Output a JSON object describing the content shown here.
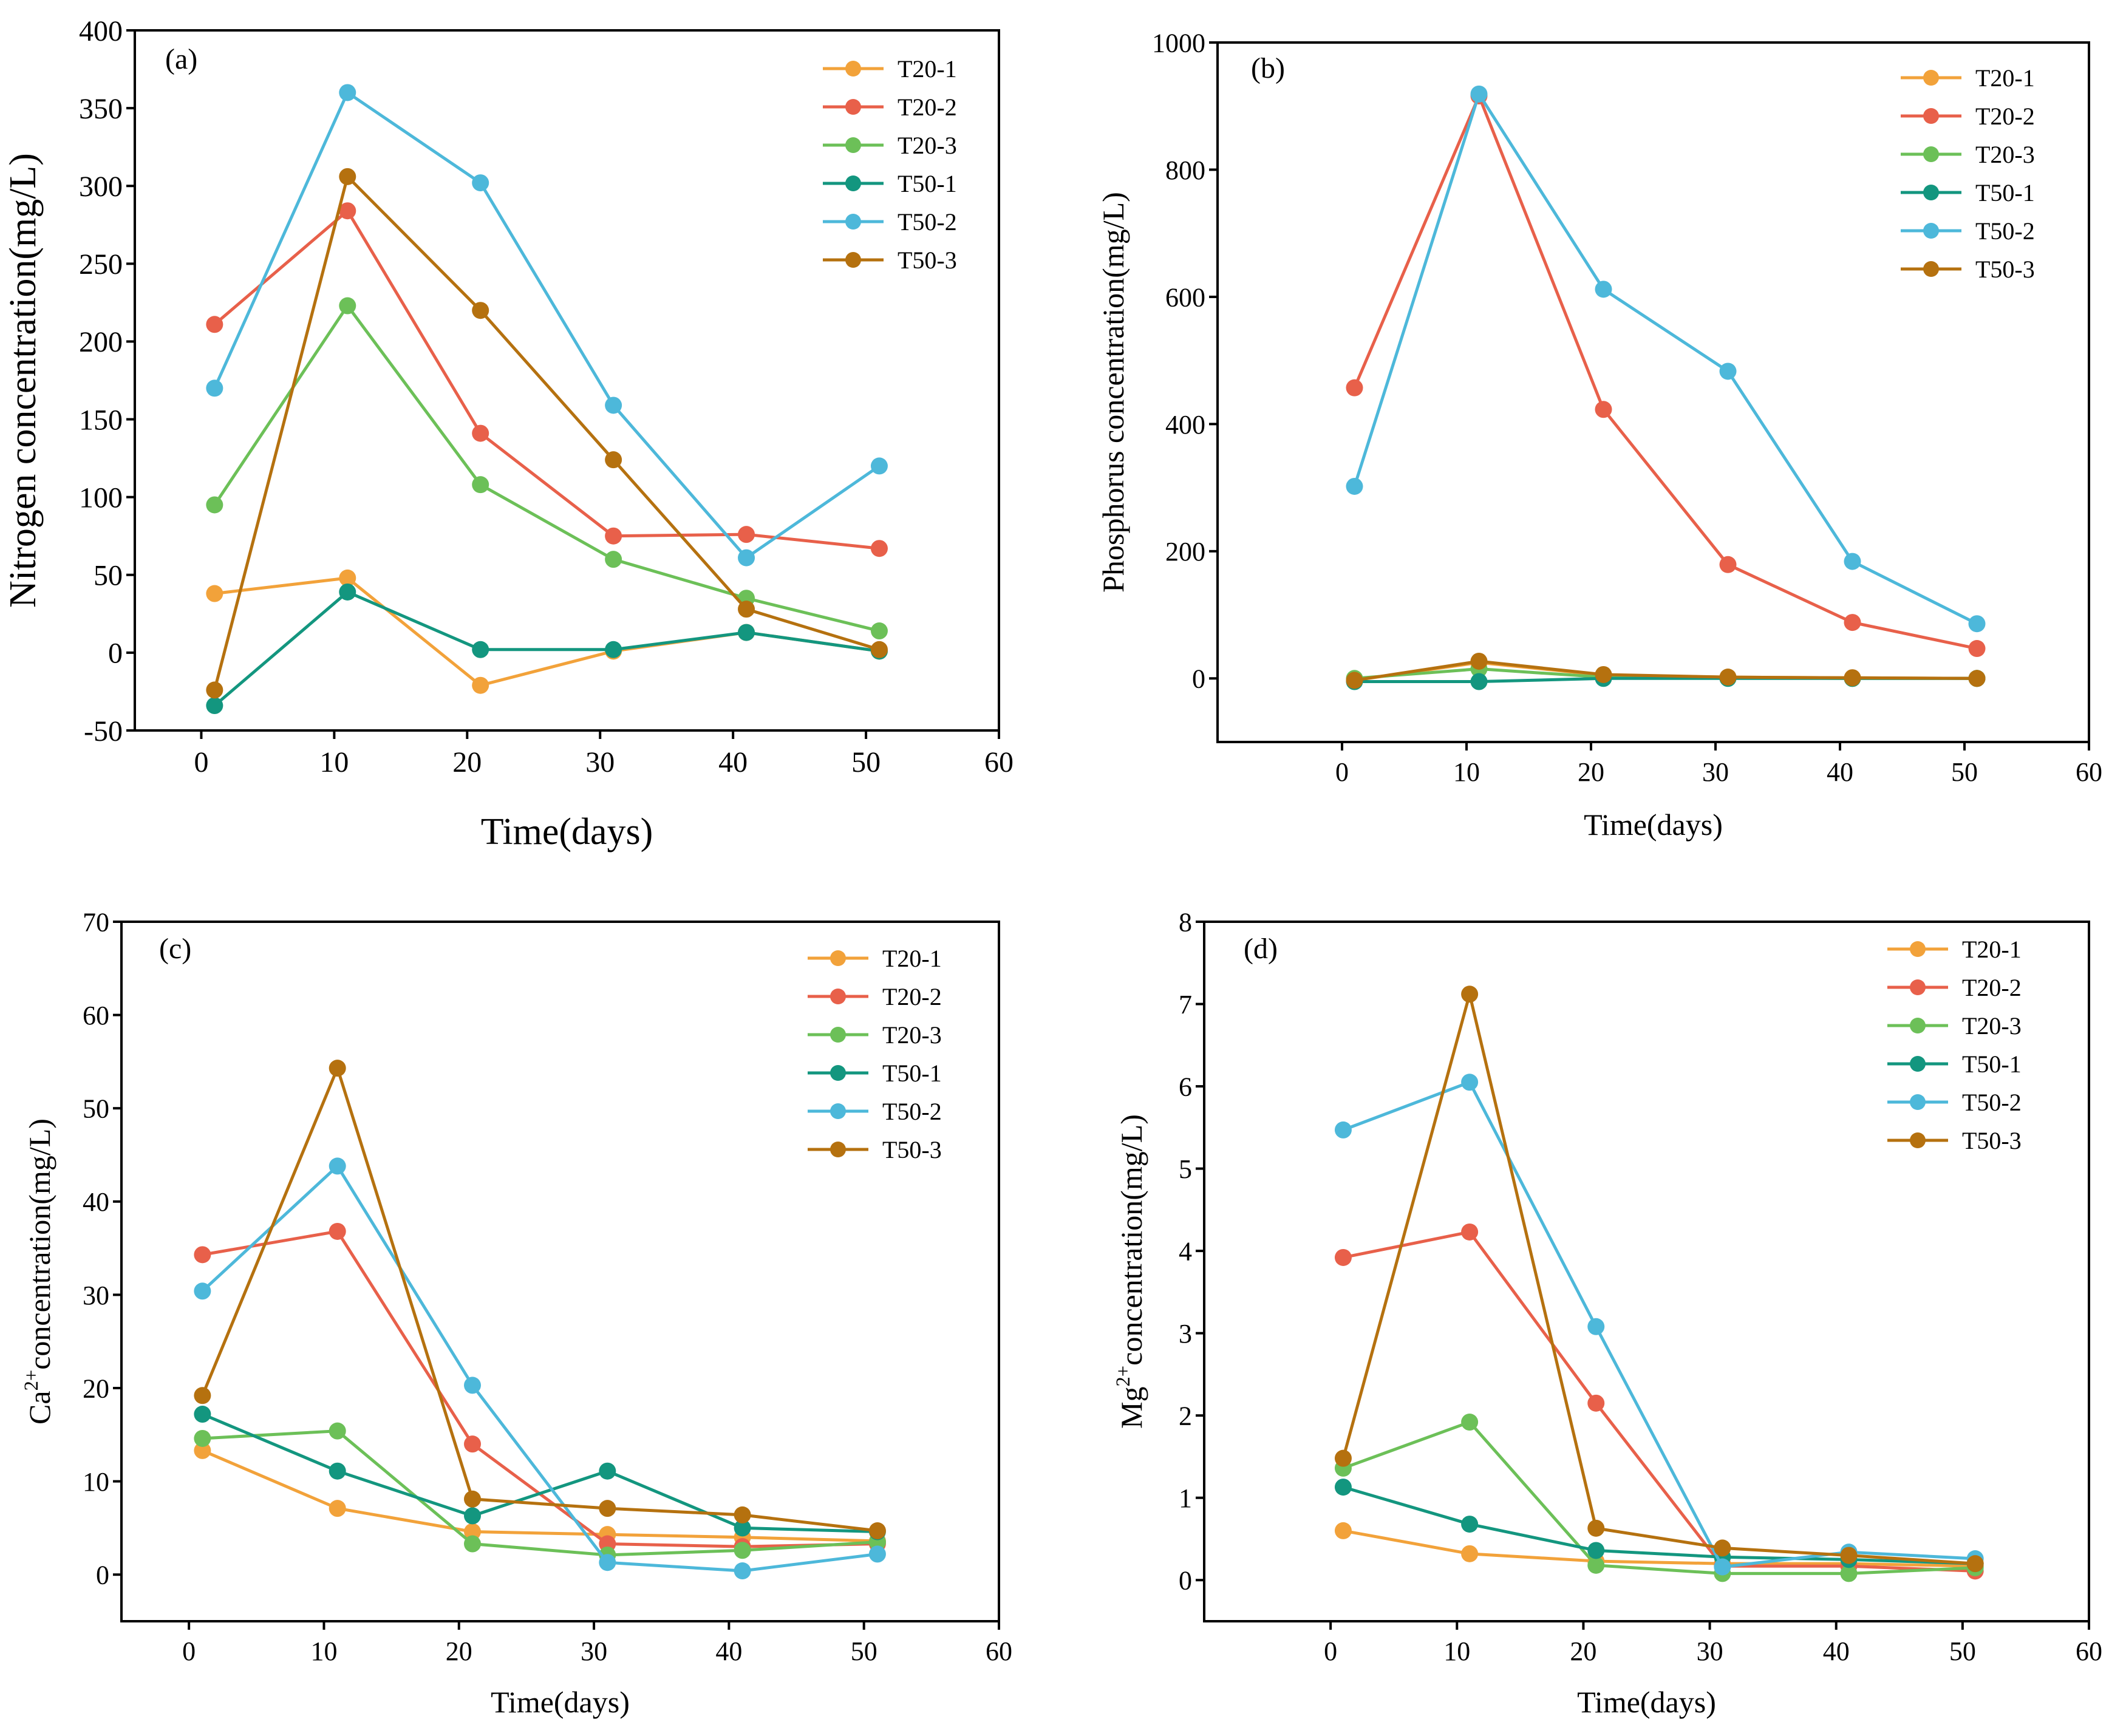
{
  "series_colors": {
    "T20-1": "#F2A23A",
    "T20-2": "#E8604A",
    "T20-3": "#6CC058",
    "T50-1": "#13967F",
    "T50-2": "#4DB8DA",
    "T50-3": "#B5710F"
  },
  "chart_data": [
    {
      "type": "line",
      "panel_label": "(a)",
      "xlabel": "Time(days)",
      "ylabel": "Nitrogen concentration(mg/L)",
      "xlim": [
        -5,
        60
      ],
      "ylim": [
        -50,
        400
      ],
      "xticks": [
        0,
        10,
        20,
        30,
        40,
        50,
        60
      ],
      "yticks": [
        -50,
        0,
        50,
        100,
        150,
        200,
        250,
        300,
        350,
        400
      ],
      "legend_position": "top-right",
      "x": [
        1,
        11,
        21,
        31,
        41,
        51
      ],
      "series": [
        {
          "name": "T20-1",
          "values": [
            38,
            48,
            -21,
            1,
            13,
            1
          ]
        },
        {
          "name": "T20-2",
          "values": [
            211,
            284,
            141,
            75,
            76,
            67
          ]
        },
        {
          "name": "T20-3",
          "values": [
            95,
            223,
            108,
            60,
            35,
            14
          ]
        },
        {
          "name": "T50-1",
          "values": [
            -34,
            39,
            2,
            2,
            13,
            1
          ]
        },
        {
          "name": "T50-2",
          "values": [
            170,
            360,
            302,
            159,
            61,
            120
          ]
        },
        {
          "name": "T50-3",
          "values": [
            -24,
            306,
            220,
            124,
            28,
            2
          ]
        }
      ]
    },
    {
      "type": "line",
      "panel_label": "(b)",
      "xlabel": "Time(days)",
      "ylabel": "Phosphorus concentration(mg/L)",
      "xlim": [
        -10,
        60
      ],
      "ylim": [
        -100,
        1000
      ],
      "xticks": [
        0,
        10,
        20,
        30,
        40,
        50,
        60
      ],
      "yticks": [
        0,
        200,
        400,
        600,
        800,
        1000
      ],
      "legend_position": "top-right",
      "x": [
        1,
        11,
        21,
        31,
        41,
        51
      ],
      "series": [
        {
          "name": "T20-1",
          "values": [
            -3,
            25,
            5,
            2,
            1,
            0
          ]
        },
        {
          "name": "T20-2",
          "values": [
            457,
            916,
            423,
            179,
            88,
            47
          ]
        },
        {
          "name": "T20-3",
          "values": [
            0,
            15,
            2,
            1,
            0,
            0
          ]
        },
        {
          "name": "T50-1",
          "values": [
            -5,
            -5,
            0,
            0,
            0,
            0
          ]
        },
        {
          "name": "T50-2",
          "values": [
            302,
            919,
            612,
            483,
            184,
            86
          ]
        },
        {
          "name": "T50-3",
          "values": [
            -3,
            27,
            6,
            2,
            1,
            0
          ]
        }
      ]
    },
    {
      "type": "line",
      "panel_label": "(c)",
      "xlabel": "Time(days)",
      "ylabel_main": "Ca",
      "ylabel_sup": "2+",
      "ylabel_rest": "concentration(mg/L)",
      "xlim": [
        -5,
        60
      ],
      "ylim": [
        -5,
        70
      ],
      "xticks": [
        0,
        10,
        20,
        30,
        40,
        50,
        60
      ],
      "yticks": [
        0,
        10,
        20,
        30,
        40,
        50,
        60,
        70
      ],
      "legend_position": "top-right",
      "x": [
        1,
        11,
        21,
        31,
        41,
        51
      ],
      "series": [
        {
          "name": "T20-1",
          "values": [
            13.3,
            7.1,
            4.6,
            4.3,
            4.0,
            3.6
          ]
        },
        {
          "name": "T20-2",
          "values": [
            34.3,
            36.8,
            14.0,
            3.3,
            3.0,
            3.3
          ]
        },
        {
          "name": "T20-3",
          "values": [
            14.6,
            15.4,
            3.3,
            2.1,
            2.6,
            3.5
          ]
        },
        {
          "name": "T50-1",
          "values": [
            17.2,
            11.1,
            6.3,
            11.1,
            5.0,
            4.6
          ]
        },
        {
          "name": "T50-2",
          "values": [
            30.4,
            43.8,
            20.3,
            1.3,
            0.4,
            2.2
          ]
        },
        {
          "name": "T50-3",
          "values": [
            19.2,
            54.3,
            8.1,
            7.1,
            6.4,
            4.7
          ]
        }
      ]
    },
    {
      "type": "line",
      "panel_label": "(d)",
      "xlabel": "Time(days)",
      "ylabel_main": "Mg",
      "ylabel_sup": "2+",
      "ylabel_rest": "concentration(mg/L)",
      "xlim": [
        -10,
        60
      ],
      "ylim": [
        -0.5,
        8
      ],
      "xticks": [
        0,
        10,
        20,
        30,
        40,
        50,
        60
      ],
      "yticks": [
        0,
        1,
        2,
        3,
        4,
        5,
        6,
        7,
        8
      ],
      "legend_position": "top-right",
      "x": [
        1,
        11,
        21,
        31,
        41,
        51
      ],
      "series": [
        {
          "name": "T20-1",
          "values": [
            0.6,
            0.32,
            0.23,
            0.2,
            0.2,
            0.17
          ]
        },
        {
          "name": "T20-2",
          "values": [
            3.92,
            4.23,
            2.15,
            0.17,
            0.17,
            0.11
          ]
        },
        {
          "name": "T20-3",
          "values": [
            1.36,
            1.92,
            0.18,
            0.08,
            0.08,
            0.15
          ]
        },
        {
          "name": "T50-1",
          "values": [
            1.13,
            0.68,
            0.36,
            0.28,
            0.25,
            0.2
          ]
        },
        {
          "name": "T50-2",
          "values": [
            5.47,
            6.05,
            3.08,
            0.16,
            0.34,
            0.26
          ]
        },
        {
          "name": "T50-3",
          "values": [
            1.48,
            7.12,
            0.63,
            0.39,
            0.3,
            0.2
          ]
        }
      ]
    }
  ]
}
